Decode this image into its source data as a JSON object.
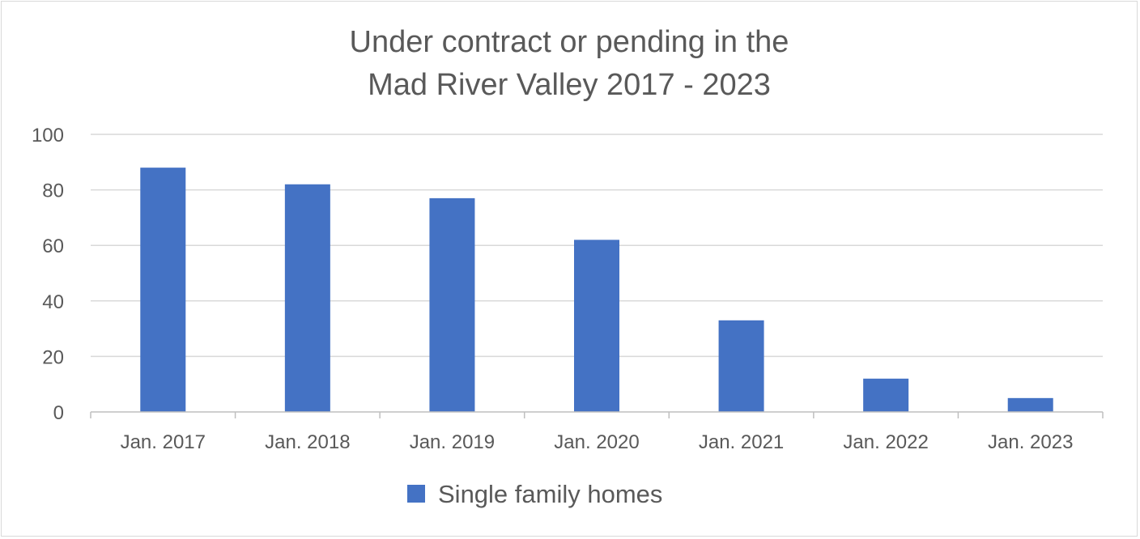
{
  "chart_data": {
    "type": "bar",
    "title_lines": [
      "Under contract or pending in the",
      "Mad River Valley 2017 - 2023"
    ],
    "categories": [
      "Jan. 2017",
      "Jan. 2018",
      "Jan. 2019",
      "Jan. 2020",
      "Jan. 2021",
      "Jan. 2022",
      "Jan. 2023"
    ],
    "series": [
      {
        "name": "Single family homes",
        "values": [
          88,
          82,
          77,
          62,
          33,
          12,
          5
        ]
      }
    ],
    "ylim": [
      0,
      100
    ],
    "yticks": [
      "0",
      "20",
      "40",
      "60",
      "80",
      "100"
    ],
    "grid": true,
    "legend_position": "bottom",
    "colors": {
      "bar": "#4472c4",
      "grid": "#d9d9d9",
      "axis": "#bfbfbf",
      "text": "#595959"
    }
  }
}
